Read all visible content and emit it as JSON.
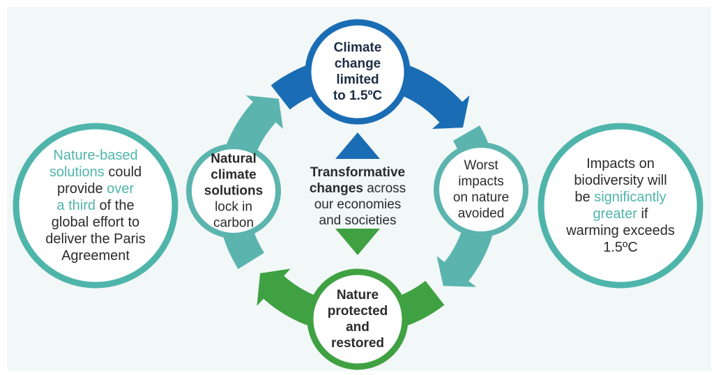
{
  "nodes": [
    {
      "lines": [
        [
          {
            "text": "Climate",
            "bold": true
          }
        ],
        [
          {
            "text": "change",
            "bold": true
          }
        ],
        [
          {
            "text": "limited",
            "bold": true
          }
        ],
        [
          {
            "text": "to 1.5ºC",
            "bold": true
          }
        ]
      ]
    },
    {
      "lines": [
        [
          {
            "text": "Worst"
          }
        ],
        [
          {
            "text": "impacts"
          }
        ],
        [
          {
            "text": "on nature"
          }
        ],
        [
          {
            "text": "avoided"
          }
        ]
      ]
    },
    {
      "lines": [
        [
          {
            "text": "Nature",
            "bold": true
          }
        ],
        [
          {
            "text": "protected",
            "bold": true
          }
        ],
        [
          {
            "text": "and",
            "bold": true
          }
        ],
        [
          {
            "text": "restored",
            "bold": true
          }
        ]
      ]
    },
    {
      "lines": [
        [
          {
            "text": "Natural",
            "bold": true
          }
        ],
        [
          {
            "text": "climate",
            "bold": true
          }
        ],
        [
          {
            "text": "solutions",
            "bold": true
          }
        ],
        [
          {
            "text": "lock in"
          }
        ],
        [
          {
            "text": "carbon"
          }
        ]
      ]
    },
    {
      "lines": [
        [
          {
            "text": "Transformative",
            "bold": true
          }
        ],
        [
          {
            "text": "changes",
            "bold": true
          },
          {
            "text": " across"
          }
        ],
        [
          {
            "text": "our economies"
          }
        ],
        [
          {
            "text": "and societies"
          }
        ]
      ]
    },
    {
      "lines": [
        [
          {
            "text": "Nature-based",
            "accent": true
          }
        ],
        [
          {
            "text": "solutions",
            "accent": true
          },
          {
            "text": " could"
          }
        ],
        [
          {
            "text": "provide "
          },
          {
            "text": "over",
            "accent": true
          }
        ],
        [
          {
            "text": "a third",
            "accent": true
          },
          {
            "text": " of the"
          }
        ],
        [
          {
            "text": "global effort to"
          }
        ],
        [
          {
            "text": "deliver the Paris"
          }
        ],
        [
          {
            "text": "Agreement"
          }
        ]
      ]
    },
    {
      "lines": [
        [
          {
            "text": "Impacts on"
          }
        ],
        [
          {
            "text": "biodiversity will"
          }
        ],
        [
          {
            "text": "be "
          },
          {
            "text": "significantly",
            "accent": true
          }
        ],
        [
          {
            "text": "greater",
            "accent": true
          },
          {
            "text": " if"
          }
        ],
        [
          {
            "text": "warming exceeds"
          }
        ],
        [
          {
            "text": "1.5ºC"
          }
        ]
      ]
    }
  ]
}
